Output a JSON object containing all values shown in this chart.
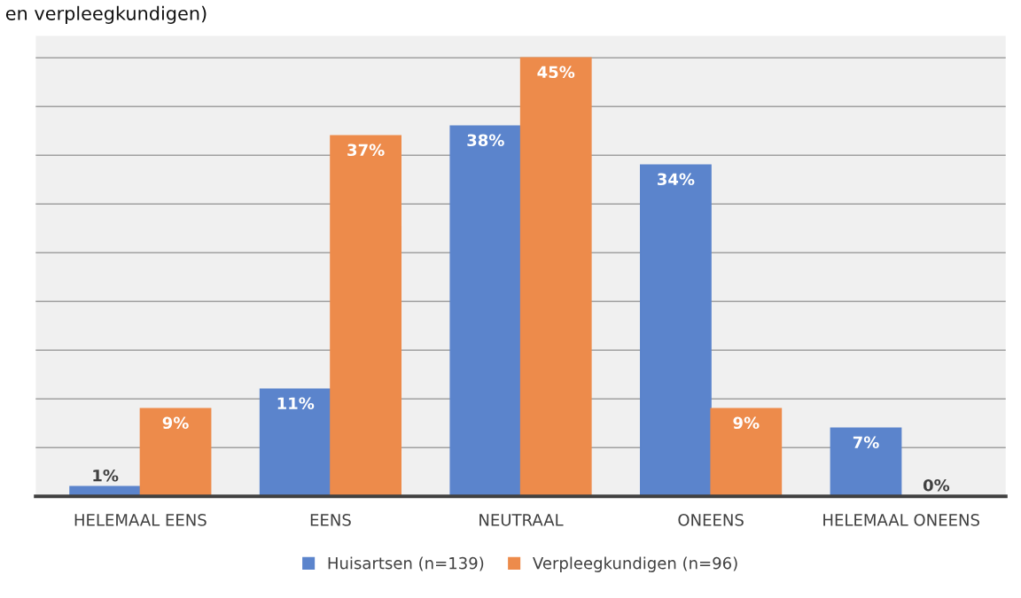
{
  "chart_data": {
    "type": "bar",
    "title": "en verpleegkundigen)",
    "categories": [
      "HELEMAAL EENS",
      "EENS",
      "NEUTRAAL",
      "ONEENS",
      "HELEMAAL ONEENS"
    ],
    "series": [
      {
        "name": "Huisartsen (n=139)",
        "color": "#5b84cc",
        "values": [
          1,
          11,
          38,
          34,
          7
        ],
        "value_labels": [
          "1%",
          "11%",
          "38%",
          "34%",
          "7%"
        ]
      },
      {
        "name": "Verpleegkundigen (n=96)",
        "color": "#ed8b4b",
        "values": [
          9,
          37,
          45,
          9,
          0
        ],
        "value_labels": [
          "9%",
          "37%",
          "45%",
          "9%",
          "0%"
        ]
      }
    ],
    "tick_labels": "x",
    "grid": "y",
    "legend": "bottom"
  }
}
